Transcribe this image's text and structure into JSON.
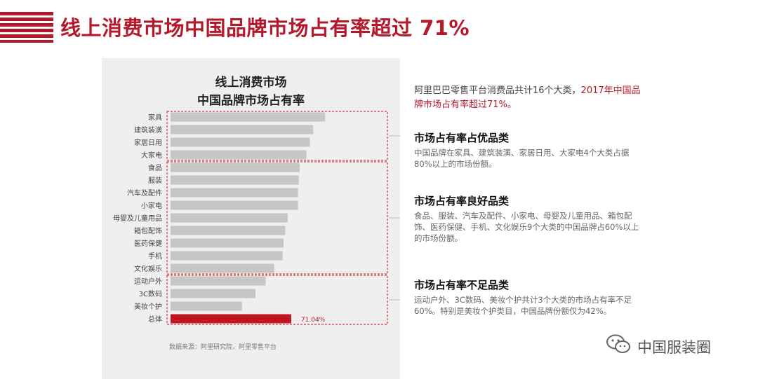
{
  "header": {
    "title": "线上消费市场中国品牌市场占有率超过 71%"
  },
  "chart_data": {
    "type": "bar",
    "orientation": "horizontal",
    "title": "线上消费市场\n中国品牌市场占有率",
    "title_lines": [
      "线上消费市场",
      "中国品牌市场占有率"
    ],
    "categories": [
      "家具",
      "建筑装潢",
      "家居日用",
      "大家电",
      "食品",
      "服装",
      "汽车及配件",
      "小家电",
      "母婴及儿童用品",
      "箱包配饰",
      "医药保健",
      "手机",
      "文化娱乐",
      "运动户外",
      "3C数码",
      "美妆个护",
      "总体"
    ],
    "values": [
      0.91,
      0.84,
      0.82,
      0.8,
      0.76,
      0.755,
      0.75,
      0.75,
      0.69,
      0.675,
      0.665,
      0.66,
      0.61,
      0.56,
      0.5,
      0.42,
      0.7104
    ],
    "highlight_index": 16,
    "total_label": "71.04%",
    "xlim": [
      0,
      1
    ],
    "groups": [
      {
        "name": "市场占有率占优品类",
        "start": 0,
        "end": 3
      },
      {
        "name": "市场占有率良好品类",
        "start": 4,
        "end": 12
      },
      {
        "name": "市场占有率不足品类",
        "start": 13,
        "end": 16
      }
    ],
    "bar_color": "#c6c6c6",
    "highlight_color": "#c0141f",
    "source_note": "数据来源：阿里研究院，阿里零售平台"
  },
  "intro": {
    "text": "阿里巴巴零售平台消费品共计16个大类，",
    "highlight": "2017年中国品牌市场占有率超过71%。"
  },
  "sections": [
    {
      "heading": "市场占有率占优品类",
      "text": "中国品牌在家具、建筑装潢、家居日用、大家电4个大类占据80%以上的市场份额。"
    },
    {
      "heading": "市场占有率良好品类",
      "text": "食品、服装、汽车及配件、小家电、母婴及儿童用品、箱包配饰、医药保健、手机、文化娱乐9个大类的中国品牌占60%以上的市场份额。"
    },
    {
      "heading": "市场占有率不足品类",
      "text": "运动户外、3C数码、美妆个护共计3个大类的市场占有率不足60%。特别是美妆个护类目，中国品牌份额仅为42%。"
    }
  ],
  "watermark": {
    "icon": "wechat-icon",
    "text": "中国服装圈"
  },
  "colors": {
    "accent": "#b3192b",
    "panel": "#efefef"
  }
}
